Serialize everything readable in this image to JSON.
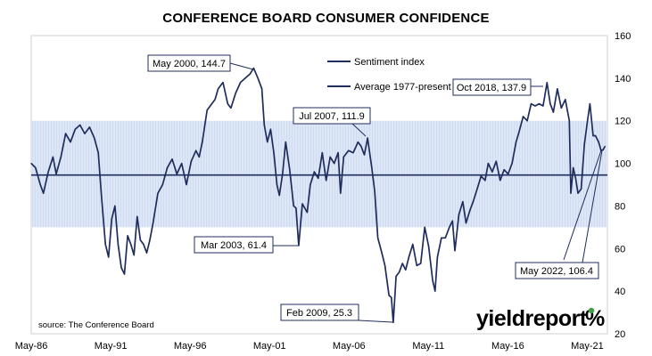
{
  "chart_data": {
    "type": "line",
    "title": "CONFERENCE BOARD CONSUMER CONFIDENCE",
    "xlabel": "",
    "ylabel": "",
    "x_ticks": [
      "May-86",
      "May-91",
      "May-96",
      "May-01",
      "May-06",
      "May-11",
      "May-16",
      "May-21"
    ],
    "x_range": [
      1986.33,
      2022.6
    ],
    "ylim": [
      20,
      160
    ],
    "y_ticks": [
      20,
      40,
      60,
      80,
      100,
      120,
      140,
      160
    ],
    "grid": false,
    "legend_position": "top-center",
    "shaded_band": [
      70,
      120
    ],
    "series": [
      {
        "name": "Sentiment index",
        "color": "#1f2d5c",
        "points": [
          [
            1986.33,
            100.0
          ],
          [
            1986.6,
            98.0
          ],
          [
            1986.9,
            90.0
          ],
          [
            1987.1,
            86.0
          ],
          [
            1987.4,
            96.0
          ],
          [
            1987.7,
            103.0
          ],
          [
            1987.9,
            95.0
          ],
          [
            1988.2,
            103.0
          ],
          [
            1988.5,
            114.0
          ],
          [
            1988.8,
            110.0
          ],
          [
            1989.1,
            116.0
          ],
          [
            1989.4,
            118.0
          ],
          [
            1989.7,
            114.0
          ],
          [
            1990.0,
            117.0
          ],
          [
            1990.3,
            112.0
          ],
          [
            1990.55,
            105.0
          ],
          [
            1990.75,
            85.0
          ],
          [
            1991.0,
            62.0
          ],
          [
            1991.2,
            56.0
          ],
          [
            1991.4,
            74.0
          ],
          [
            1991.6,
            80.0
          ],
          [
            1991.8,
            62.0
          ],
          [
            1992.0,
            51.0
          ],
          [
            1992.2,
            48.0
          ],
          [
            1992.4,
            66.0
          ],
          [
            1992.6,
            62.0
          ],
          [
            1992.8,
            57.0
          ],
          [
            1993.0,
            75.0
          ],
          [
            1993.2,
            64.0
          ],
          [
            1993.4,
            62.0
          ],
          [
            1993.6,
            58.0
          ],
          [
            1993.8,
            64.0
          ],
          [
            1994.0,
            72.0
          ],
          [
            1994.3,
            86.0
          ],
          [
            1994.6,
            90.0
          ],
          [
            1994.9,
            98.0
          ],
          [
            1995.2,
            102.0
          ],
          [
            1995.5,
            95.0
          ],
          [
            1995.8,
            100.0
          ],
          [
            1996.1,
            90.0
          ],
          [
            1996.4,
            101.0
          ],
          [
            1996.7,
            106.0
          ],
          [
            1996.9,
            103.0
          ],
          [
            1997.1,
            110.0
          ],
          [
            1997.4,
            125.0
          ],
          [
            1997.7,
            128.0
          ],
          [
            1997.9,
            130.0
          ],
          [
            1998.1,
            135.0
          ],
          [
            1998.4,
            138.0
          ],
          [
            1998.7,
            128.0
          ],
          [
            1998.9,
            126.0
          ],
          [
            1999.2,
            133.0
          ],
          [
            1999.5,
            138.0
          ],
          [
            1999.8,
            140.0
          ],
          [
            2000.1,
            142.0
          ],
          [
            2000.33,
            144.7
          ],
          [
            2000.6,
            140.0
          ],
          [
            2000.85,
            135.0
          ],
          [
            2001.0,
            118.0
          ],
          [
            2001.2,
            110.0
          ],
          [
            2001.4,
            116.0
          ],
          [
            2001.6,
            105.0
          ],
          [
            2001.8,
            90.0
          ],
          [
            2001.95,
            85.0
          ],
          [
            2002.15,
            95.0
          ],
          [
            2002.35,
            110.0
          ],
          [
            2002.6,
            97.0
          ],
          [
            2002.85,
            80.0
          ],
          [
            2003.0,
            79.0
          ],
          [
            2003.17,
            61.4
          ],
          [
            2003.4,
            81.0
          ],
          [
            2003.7,
            77.0
          ],
          [
            2003.9,
            90.0
          ],
          [
            2004.15,
            96.0
          ],
          [
            2004.4,
            93.0
          ],
          [
            2004.65,
            105.0
          ],
          [
            2004.9,
            92.0
          ],
          [
            2005.15,
            103.0
          ],
          [
            2005.4,
            100.0
          ],
          [
            2005.65,
            105.0
          ],
          [
            2005.8,
            86.0
          ],
          [
            2006.0,
            103.0
          ],
          [
            2006.3,
            106.0
          ],
          [
            2006.6,
            105.0
          ],
          [
            2006.9,
            110.0
          ],
          [
            2007.1,
            108.0
          ],
          [
            2007.3,
            104.0
          ],
          [
            2007.5,
            111.9
          ],
          [
            2007.75,
            99.0
          ],
          [
            2007.95,
            87.0
          ],
          [
            2008.15,
            65.0
          ],
          [
            2008.4,
            58.0
          ],
          [
            2008.6,
            52.0
          ],
          [
            2008.85,
            38.0
          ],
          [
            2009.0,
            37.0
          ],
          [
            2009.12,
            25.3
          ],
          [
            2009.3,
            47.0
          ],
          [
            2009.5,
            49.0
          ],
          [
            2009.7,
            53.0
          ],
          [
            2009.9,
            50.0
          ],
          [
            2010.1,
            56.0
          ],
          [
            2010.35,
            62.0
          ],
          [
            2010.6,
            52.0
          ],
          [
            2010.85,
            53.0
          ],
          [
            2011.1,
            70.0
          ],
          [
            2011.35,
            61.0
          ],
          [
            2011.6,
            45.0
          ],
          [
            2011.75,
            40.0
          ],
          [
            2011.9,
            56.0
          ],
          [
            2012.15,
            65.0
          ],
          [
            2012.4,
            65.0
          ],
          [
            2012.65,
            70.0
          ],
          [
            2012.85,
            73.0
          ],
          [
            2013.0,
            59.0
          ],
          [
            2013.25,
            76.0
          ],
          [
            2013.5,
            82.0
          ],
          [
            2013.7,
            72.0
          ],
          [
            2013.95,
            78.0
          ],
          [
            2014.15,
            82.0
          ],
          [
            2014.4,
            88.0
          ],
          [
            2014.65,
            94.0
          ],
          [
            2014.9,
            92.0
          ],
          [
            2015.1,
            100.0
          ],
          [
            2015.35,
            96.0
          ],
          [
            2015.6,
            101.0
          ],
          [
            2015.85,
            92.0
          ],
          [
            2016.1,
            97.0
          ],
          [
            2016.35,
            95.0
          ],
          [
            2016.6,
            100.0
          ],
          [
            2016.85,
            110.0
          ],
          [
            2017.05,
            115.0
          ],
          [
            2017.3,
            122.0
          ],
          [
            2017.55,
            120.0
          ],
          [
            2017.8,
            128.0
          ],
          [
            2018.05,
            127.0
          ],
          [
            2018.3,
            128.0
          ],
          [
            2018.55,
            127.0
          ],
          [
            2018.8,
            137.9
          ],
          [
            2019.0,
            128.0
          ],
          [
            2019.2,
            124.0
          ],
          [
            2019.45,
            135.0
          ],
          [
            2019.7,
            126.0
          ],
          [
            2019.95,
            130.0
          ],
          [
            2020.2,
            120.0
          ],
          [
            2020.3,
            86.0
          ],
          [
            2020.45,
            98.0
          ],
          [
            2020.6,
            93.0
          ],
          [
            2020.75,
            86.0
          ],
          [
            2020.95,
            88.0
          ],
          [
            2021.15,
            109.0
          ],
          [
            2021.35,
            120.0
          ],
          [
            2021.5,
            128.0
          ],
          [
            2021.7,
            113.0
          ],
          [
            2021.85,
            113.0
          ],
          [
            2022.05,
            110.0
          ],
          [
            2022.2,
            106.0
          ],
          [
            2022.33,
            106.4
          ],
          [
            2022.45,
            108.0
          ]
        ]
      },
      {
        "name": "Average 1977-present",
        "color": "#1f2d5c",
        "points": [
          [
            1986.33,
            94.5
          ],
          [
            2022.6,
            94.5
          ]
        ]
      }
    ],
    "annotations": [
      {
        "text": "May 2000, 144.7",
        "x": 2000.33,
        "y": 144.7
      },
      {
        "text": "Jul 2007, 111.9",
        "x": 2007.5,
        "y": 111.9
      },
      {
        "text": "Mar 2003, 61.4",
        "x": 2003.17,
        "y": 61.4
      },
      {
        "text": "Feb 2009, 25.3",
        "x": 2009.12,
        "y": 25.3
      },
      {
        "text": "Oct 2018, 137.9",
        "x": 2018.8,
        "y": 137.9
      },
      {
        "text": "May 2022, 106.4",
        "x": 2022.33,
        "y": 106.4
      }
    ],
    "source": "source: The Conference Board"
  },
  "brand": {
    "name": "yieldreport",
    "symbol": "%",
    "colors": {
      "green": "#3f9d48",
      "red": "#d12a2a",
      "text": "#000000"
    }
  },
  "colors": {
    "line": "#1f2d5c",
    "band_fill": "#dde6f6",
    "band_hatch": "#c7d3ec",
    "plot_border": "#d0d0d0",
    "callout_border": "#1f2d5c"
  }
}
